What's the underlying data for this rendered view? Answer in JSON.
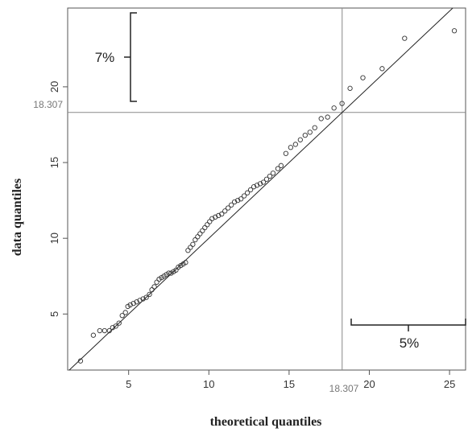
{
  "chart_data": {
    "type": "scatter",
    "title": "",
    "xlabel": "theoretical  quantiles",
    "ylabel": "data quantiles",
    "xlim": [
      1.2,
      26.0
    ],
    "ylim": [
      1.3,
      25.2
    ],
    "x_ticks": [
      5,
      10,
      15,
      20,
      25
    ],
    "y_ticks": [
      5,
      10,
      15,
      20
    ],
    "grid": false,
    "reference_value": 18.307,
    "reference_value_label": "18.307",
    "identity_line": true,
    "annotations": [
      {
        "label": "7%",
        "axis": "y",
        "from": 18.307,
        "to": 24.6
      },
      {
        "label": "5%",
        "axis": "x",
        "from": 18.307,
        "to": 26.0
      }
    ],
    "series": [
      {
        "points": [
          [
            2.0,
            1.9
          ],
          [
            2.8,
            3.6
          ],
          [
            3.2,
            3.9
          ],
          [
            3.5,
            3.9
          ],
          [
            3.8,
            3.9
          ],
          [
            4.0,
            4.1
          ],
          [
            4.2,
            4.2
          ],
          [
            4.4,
            4.4
          ],
          [
            4.6,
            4.9
          ],
          [
            4.8,
            5.1
          ],
          [
            4.95,
            5.5
          ],
          [
            5.1,
            5.6
          ],
          [
            5.3,
            5.7
          ],
          [
            5.5,
            5.8
          ],
          [
            5.7,
            5.9
          ],
          [
            5.9,
            6.0
          ],
          [
            6.1,
            6.1
          ],
          [
            6.3,
            6.3
          ],
          [
            6.45,
            6.6
          ],
          [
            6.6,
            6.8
          ],
          [
            6.75,
            7.1
          ],
          [
            6.9,
            7.3
          ],
          [
            7.05,
            7.4
          ],
          [
            7.2,
            7.5
          ],
          [
            7.35,
            7.6
          ],
          [
            7.5,
            7.7
          ],
          [
            7.65,
            7.7
          ],
          [
            7.8,
            7.8
          ],
          [
            7.95,
            7.9
          ],
          [
            8.1,
            8.1
          ],
          [
            8.25,
            8.2
          ],
          [
            8.4,
            8.3
          ],
          [
            8.55,
            8.4
          ],
          [
            8.7,
            9.2
          ],
          [
            8.85,
            9.4
          ],
          [
            9.0,
            9.6
          ],
          [
            9.15,
            9.9
          ],
          [
            9.3,
            10.1
          ],
          [
            9.45,
            10.3
          ],
          [
            9.6,
            10.5
          ],
          [
            9.75,
            10.7
          ],
          [
            9.9,
            10.9
          ],
          [
            10.05,
            11.1
          ],
          [
            10.2,
            11.3
          ],
          [
            10.4,
            11.4
          ],
          [
            10.6,
            11.5
          ],
          [
            10.8,
            11.6
          ],
          [
            11.0,
            11.8
          ],
          [
            11.2,
            12.0
          ],
          [
            11.4,
            12.2
          ],
          [
            11.6,
            12.4
          ],
          [
            11.8,
            12.5
          ],
          [
            12.0,
            12.6
          ],
          [
            12.2,
            12.8
          ],
          [
            12.4,
            13.0
          ],
          [
            12.6,
            13.2
          ],
          [
            12.8,
            13.4
          ],
          [
            13.0,
            13.5
          ],
          [
            13.2,
            13.6
          ],
          [
            13.4,
            13.7
          ],
          [
            13.6,
            13.9
          ],
          [
            13.8,
            14.1
          ],
          [
            14.0,
            14.3
          ],
          [
            14.3,
            14.6
          ],
          [
            14.5,
            14.8
          ],
          [
            14.8,
            15.6
          ],
          [
            15.1,
            16.0
          ],
          [
            15.4,
            16.2
          ],
          [
            15.7,
            16.5
          ],
          [
            16.0,
            16.8
          ],
          [
            16.3,
            17.0
          ],
          [
            16.6,
            17.3
          ],
          [
            17.0,
            17.9
          ],
          [
            17.4,
            18.0
          ],
          [
            17.8,
            18.6
          ],
          [
            18.3,
            18.9
          ],
          [
            18.8,
            19.9
          ],
          [
            19.6,
            20.6
          ],
          [
            20.8,
            21.2
          ],
          [
            22.2,
            23.2
          ],
          [
            25.3,
            23.7
          ]
        ]
      }
    ]
  }
}
